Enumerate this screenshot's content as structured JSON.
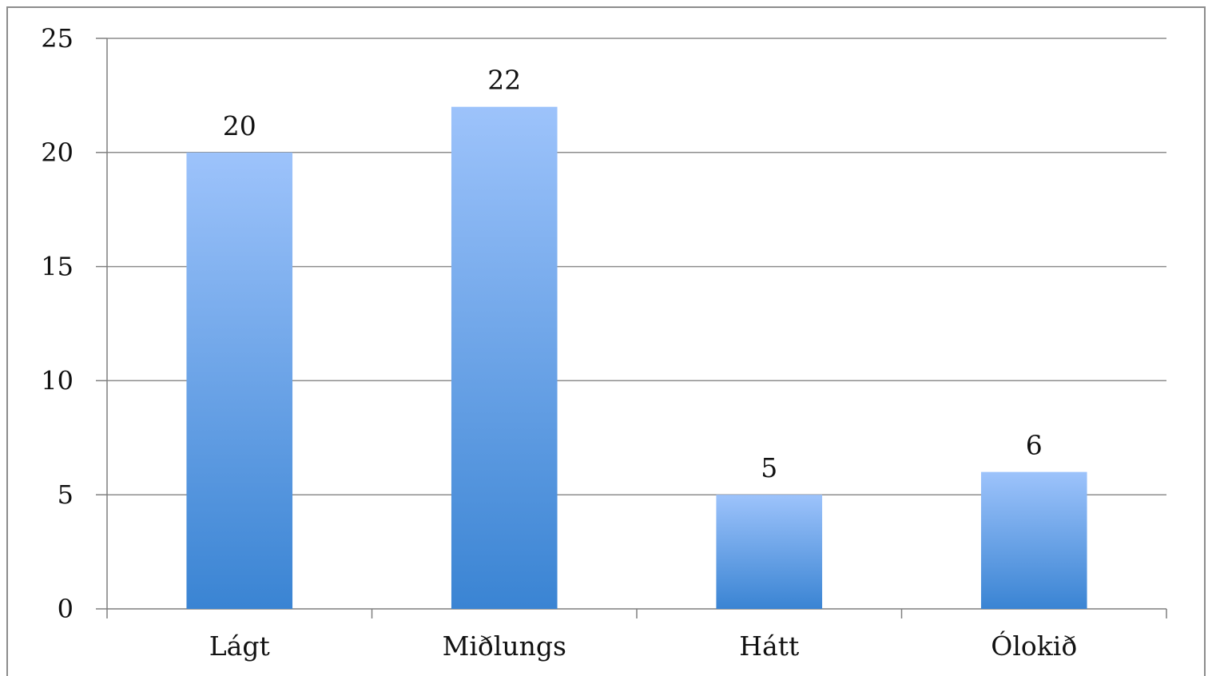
{
  "chart_data": {
    "type": "bar",
    "title": "",
    "xlabel": "",
    "ylabel": "",
    "categories": [
      "Lágt",
      "Miðlungs",
      "Hátt",
      "Ólokið"
    ],
    "values": [
      20,
      22,
      5,
      6
    ],
    "data_labels": [
      "20",
      "22",
      "5",
      "6"
    ],
    "ylim": [
      0,
      25
    ],
    "yticks": [
      0,
      5,
      10,
      15,
      20,
      25
    ],
    "grid": true,
    "legend": "none",
    "colors": {
      "bar_top": "#9dc3fb",
      "bar_bottom": "#3a84d3",
      "grid": "#8c8c8c",
      "axis": "#7f7f7f"
    }
  }
}
